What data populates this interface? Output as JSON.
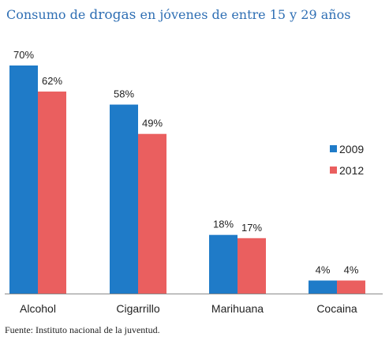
{
  "title": {
    "part1": "Consumo de",
    "part2": "drogas",
    "part3": "en jóvenes de entre 15 y 29 años"
  },
  "source": "Fuente: Instituto nacional de la juventud.",
  "colors": {
    "title": "#2f6fb4",
    "series_2009": "#1f7bc8",
    "series_2012": "#ea5f5f",
    "axis": "#8a8a8a",
    "text": "#222222"
  },
  "chart_data": {
    "type": "bar",
    "categories": [
      "Alcohol",
      "Cigarrillo",
      "Marihuana",
      "Cocaina"
    ],
    "series": [
      {
        "name": "2009",
        "values": [
          70,
          58,
          18,
          4
        ],
        "labels": [
          "70%",
          "58%",
          "18%",
          "4%"
        ]
      },
      {
        "name": "2012",
        "values": [
          62,
          49,
          17,
          4
        ],
        "labels": [
          "62%",
          "49%",
          "17%",
          "4%"
        ]
      }
    ],
    "ylim": [
      0,
      70
    ],
    "grid": false,
    "legend": "right"
  }
}
